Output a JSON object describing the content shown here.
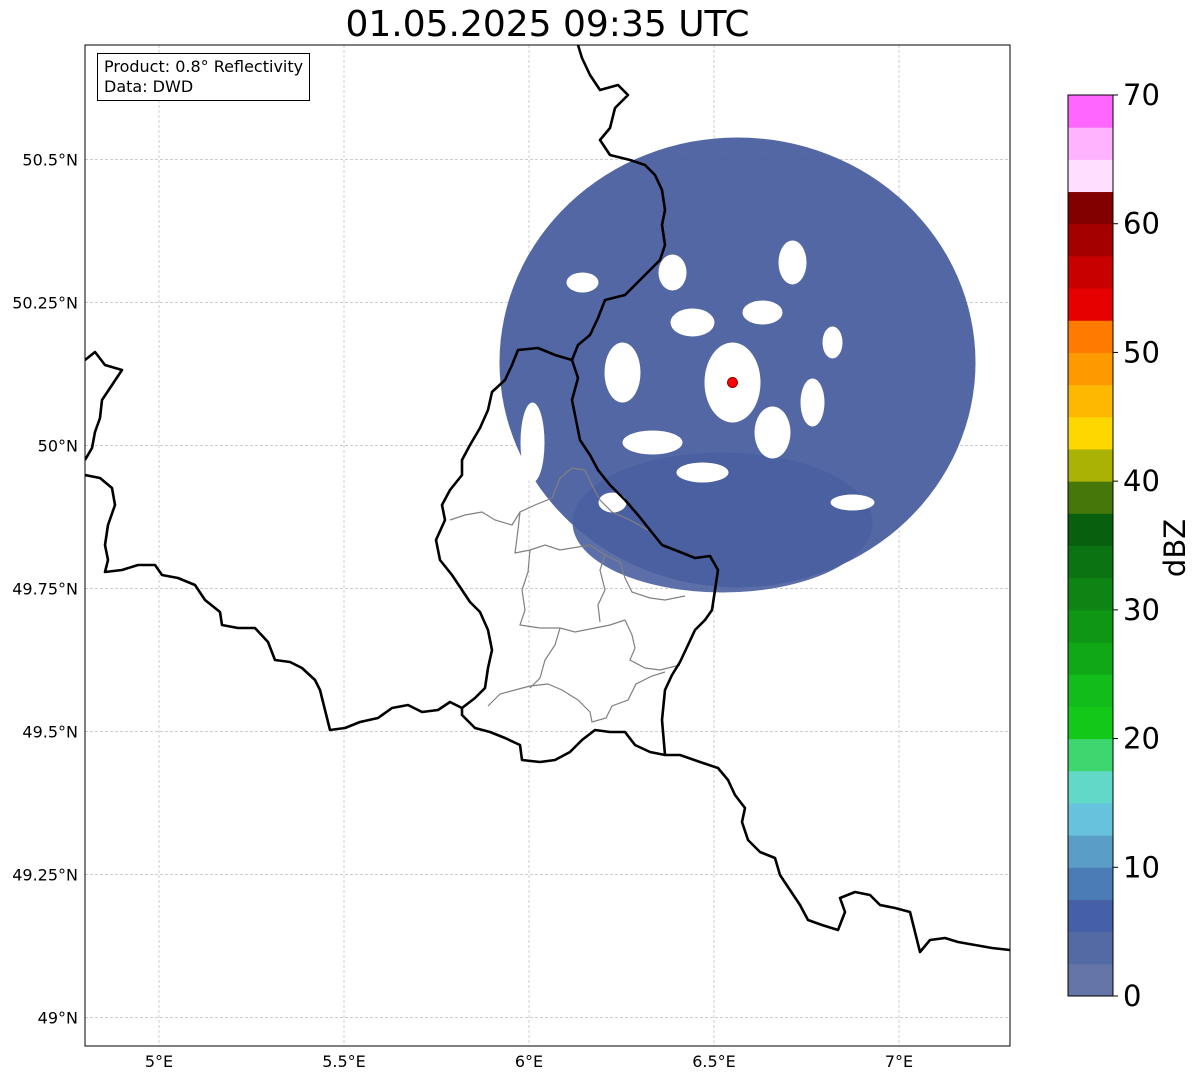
{
  "title": "01.05.2025 09:35 UTC",
  "info": {
    "product": "Product: 0.8° Reflectivity",
    "data": "Data: DWD"
  },
  "map": {
    "lon_range": [
      4.8,
      7.3
    ],
    "lat_range": [
      48.95,
      50.7
    ],
    "lat_ticks": [
      {
        "value": 49.0,
        "label": "49°N"
      },
      {
        "value": 49.25,
        "label": "49.25°N"
      },
      {
        "value": 49.5,
        "label": "49.5°N"
      },
      {
        "value": 49.75,
        "label": "49.75°N"
      },
      {
        "value": 50.0,
        "label": "50°N"
      },
      {
        "value": 50.25,
        "label": "50.25°N"
      },
      {
        "value": 50.5,
        "label": "50.5°N"
      }
    ],
    "lon_ticks": [
      {
        "value": 5.0,
        "label": "5°E"
      },
      {
        "value": 5.5,
        "label": "5.5°E"
      },
      {
        "value": 6.0,
        "label": "6°E"
      },
      {
        "value": 6.5,
        "label": "6.5°E"
      },
      {
        "value": 7.0,
        "label": "7°E"
      }
    ],
    "gridlines": true,
    "radar_site": {
      "lon": 6.55,
      "lat": 50.11,
      "color": "#ff0000"
    },
    "echo_color": "#4a5fa0"
  },
  "colorbar": {
    "label": "dBZ",
    "min": 0,
    "max": 70,
    "step": 2.5,
    "ticks": [
      0,
      10,
      20,
      30,
      40,
      50,
      60,
      70
    ],
    "colors": [
      "#6575a8",
      "#546aa5",
      "#4560a6",
      "#4b7cb5",
      "#5a9ec8",
      "#67c2dd",
      "#62d8c8",
      "#3ed66f",
      "#14c81a",
      "#12bd1b",
      "#10a816",
      "#0e9614",
      "#0d8413",
      "#0b7311",
      "#08600e",
      "#46770b",
      "#aab205",
      "#ffd700",
      "#ffb800",
      "#ff9900",
      "#ff7b00",
      "#e60000",
      "#c80000",
      "#a50000",
      "#820000",
      "#ffdfff",
      "#ffb3ff",
      "#ff66ff",
      "#ee33ee"
    ]
  }
}
